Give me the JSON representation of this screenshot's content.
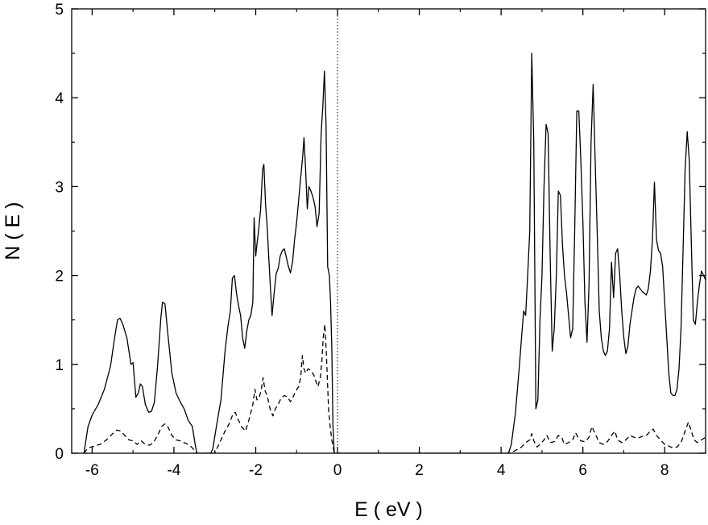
{
  "chart_data": {
    "type": "line",
    "xlabel": "E ( eV )",
    "ylabel": "N ( E )",
    "xlim": [
      -6.5,
      9.0
    ],
    "ylim": [
      0,
      5
    ],
    "xticks": [
      -6,
      -4,
      -2,
      0,
      2,
      4,
      6,
      8
    ],
    "yticks": [
      0,
      1,
      2,
      3,
      4,
      5
    ],
    "grid": false,
    "fermi_level": 0,
    "series": [
      {
        "style": "solid",
        "points": [
          [
            -6.2,
            0
          ],
          [
            -6.1,
            0.3
          ],
          [
            -6.0,
            0.43
          ],
          [
            -5.85,
            0.55
          ],
          [
            -5.7,
            0.72
          ],
          [
            -5.55,
            0.98
          ],
          [
            -5.45,
            1.3
          ],
          [
            -5.38,
            1.5
          ],
          [
            -5.32,
            1.52
          ],
          [
            -5.25,
            1.45
          ],
          [
            -5.15,
            1.3
          ],
          [
            -5.05,
            1.0
          ],
          [
            -5.0,
            1.02
          ],
          [
            -4.97,
            0.85
          ],
          [
            -4.93,
            0.63
          ],
          [
            -4.87,
            0.68
          ],
          [
            -4.82,
            0.78
          ],
          [
            -4.77,
            0.75
          ],
          [
            -4.7,
            0.55
          ],
          [
            -4.62,
            0.46
          ],
          [
            -4.55,
            0.47
          ],
          [
            -4.48,
            0.57
          ],
          [
            -4.4,
            0.98
          ],
          [
            -4.32,
            1.52
          ],
          [
            -4.28,
            1.7
          ],
          [
            -4.22,
            1.68
          ],
          [
            -4.15,
            1.35
          ],
          [
            -4.05,
            0.9
          ],
          [
            -3.95,
            0.68
          ],
          [
            -3.85,
            0.58
          ],
          [
            -3.75,
            0.5
          ],
          [
            -3.65,
            0.37
          ],
          [
            -3.55,
            0.3
          ],
          [
            -3.48,
            0.1
          ],
          [
            -3.44,
            0
          ],
          [
            -3.1,
            0
          ],
          [
            -3.05,
            0.05
          ],
          [
            -2.95,
            0.33
          ],
          [
            -2.85,
            0.6
          ],
          [
            -2.75,
            1.15
          ],
          [
            -2.68,
            1.43
          ],
          [
            -2.62,
            1.6
          ],
          [
            -2.57,
            1.97
          ],
          [
            -2.52,
            2.0
          ],
          [
            -2.47,
            1.8
          ],
          [
            -2.42,
            1.66
          ],
          [
            -2.37,
            1.55
          ],
          [
            -2.32,
            1.3
          ],
          [
            -2.27,
            1.18
          ],
          [
            -2.22,
            1.37
          ],
          [
            -2.17,
            1.5
          ],
          [
            -2.12,
            1.55
          ],
          [
            -2.07,
            1.7
          ],
          [
            -2.04,
            2.65
          ],
          [
            -2.0,
            2.22
          ],
          [
            -1.97,
            2.35
          ],
          [
            -1.93,
            2.5
          ],
          [
            -1.88,
            2.75
          ],
          [
            -1.83,
            3.2
          ],
          [
            -1.8,
            3.25
          ],
          [
            -1.76,
            2.8
          ],
          [
            -1.72,
            2.55
          ],
          [
            -1.68,
            2.2
          ],
          [
            -1.64,
            1.85
          ],
          [
            -1.6,
            1.55
          ],
          [
            -1.55,
            1.8
          ],
          [
            -1.5,
            2.02
          ],
          [
            -1.45,
            2.08
          ],
          [
            -1.4,
            2.22
          ],
          [
            -1.35,
            2.28
          ],
          [
            -1.3,
            2.3
          ],
          [
            -1.25,
            2.2
          ],
          [
            -1.2,
            2.1
          ],
          [
            -1.15,
            2.03
          ],
          [
            -1.1,
            2.15
          ],
          [
            -1.05,
            2.4
          ],
          [
            -1.0,
            2.6
          ],
          [
            -0.95,
            2.85
          ],
          [
            -0.9,
            3.1
          ],
          [
            -0.85,
            3.35
          ],
          [
            -0.82,
            3.55
          ],
          [
            -0.78,
            3.2
          ],
          [
            -0.74,
            2.75
          ],
          [
            -0.7,
            3.0
          ],
          [
            -0.65,
            2.95
          ],
          [
            -0.6,
            2.88
          ],
          [
            -0.55,
            2.78
          ],
          [
            -0.5,
            2.55
          ],
          [
            -0.45,
            2.7
          ],
          [
            -0.4,
            3.6
          ],
          [
            -0.36,
            3.9
          ],
          [
            -0.32,
            4.3
          ],
          [
            -0.28,
            3.7
          ],
          [
            -0.24,
            2.1
          ],
          [
            -0.2,
            2.0
          ],
          [
            -0.17,
            1.7
          ],
          [
            -0.14,
            1.2
          ],
          [
            -0.11,
            0.3
          ],
          [
            -0.08,
            0
          ],
          [
            4.18,
            0
          ],
          [
            4.25,
            0.1
          ],
          [
            4.35,
            0.45
          ],
          [
            4.45,
            1.0
          ],
          [
            4.5,
            1.3
          ],
          [
            4.55,
            1.6
          ],
          [
            4.6,
            1.55
          ],
          [
            4.65,
            2.0
          ],
          [
            4.7,
            2.5
          ],
          [
            4.75,
            4.5
          ],
          [
            4.8,
            3.5
          ],
          [
            4.85,
            0.5
          ],
          [
            4.9,
            0.6
          ],
          [
            4.95,
            1.5
          ],
          [
            5.0,
            2.0
          ],
          [
            5.05,
            3.0
          ],
          [
            5.1,
            3.7
          ],
          [
            5.15,
            3.6
          ],
          [
            5.2,
            2.2
          ],
          [
            5.25,
            1.15
          ],
          [
            5.3,
            1.4
          ],
          [
            5.35,
            2.0
          ],
          [
            5.4,
            2.95
          ],
          [
            5.45,
            2.9
          ],
          [
            5.5,
            2.35
          ],
          [
            5.55,
            2.0
          ],
          [
            5.6,
            1.8
          ],
          [
            5.65,
            1.55
          ],
          [
            5.7,
            1.3
          ],
          [
            5.75,
            1.4
          ],
          [
            5.8,
            2.5
          ],
          [
            5.85,
            3.85
          ],
          [
            5.9,
            3.85
          ],
          [
            5.95,
            3.3
          ],
          [
            6.0,
            2.6
          ],
          [
            6.05,
            1.7
          ],
          [
            6.1,
            1.25
          ],
          [
            6.15,
            1.9
          ],
          [
            6.2,
            3.5
          ],
          [
            6.25,
            4.15
          ],
          [
            6.3,
            3.3
          ],
          [
            6.35,
            2.5
          ],
          [
            6.4,
            1.6
          ],
          [
            6.45,
            1.3
          ],
          [
            6.5,
            1.15
          ],
          [
            6.55,
            1.1
          ],
          [
            6.6,
            1.15
          ],
          [
            6.65,
            1.4
          ],
          [
            6.7,
            2.15
          ],
          [
            6.75,
            1.75
          ],
          [
            6.8,
            2.25
          ],
          [
            6.85,
            2.3
          ],
          [
            6.9,
            2.0
          ],
          [
            6.95,
            1.6
          ],
          [
            7.0,
            1.3
          ],
          [
            7.05,
            1.12
          ],
          [
            7.1,
            1.2
          ],
          [
            7.15,
            1.45
          ],
          [
            7.2,
            1.6
          ],
          [
            7.25,
            1.75
          ],
          [
            7.3,
            1.85
          ],
          [
            7.35,
            1.88
          ],
          [
            7.4,
            1.85
          ],
          [
            7.45,
            1.82
          ],
          [
            7.5,
            1.8
          ],
          [
            7.55,
            1.78
          ],
          [
            7.6,
            1.85
          ],
          [
            7.65,
            2.05
          ],
          [
            7.7,
            2.4
          ],
          [
            7.75,
            3.05
          ],
          [
            7.8,
            2.4
          ],
          [
            7.85,
            2.28
          ],
          [
            7.9,
            2.25
          ],
          [
            7.95,
            2.1
          ],
          [
            8.0,
            1.7
          ],
          [
            8.05,
            1.3
          ],
          [
            8.1,
            0.9
          ],
          [
            8.15,
            0.68
          ],
          [
            8.2,
            0.65
          ],
          [
            8.25,
            0.65
          ],
          [
            8.3,
            0.72
          ],
          [
            8.35,
            0.95
          ],
          [
            8.4,
            1.4
          ],
          [
            8.45,
            2.3
          ],
          [
            8.5,
            3.2
          ],
          [
            8.55,
            3.62
          ],
          [
            8.6,
            3.3
          ],
          [
            8.65,
            2.4
          ],
          [
            8.7,
            1.5
          ],
          [
            8.75,
            1.45
          ],
          [
            8.8,
            1.7
          ],
          [
            8.85,
            1.9
          ],
          [
            8.9,
            2.05
          ],
          [
            8.95,
            2.0
          ],
          [
            9.0,
            1.95
          ]
        ]
      },
      {
        "style": "dashed",
        "points": [
          [
            -6.2,
            0
          ],
          [
            -6.1,
            0.06
          ],
          [
            -5.95,
            0.08
          ],
          [
            -5.8,
            0.1
          ],
          [
            -5.65,
            0.15
          ],
          [
            -5.5,
            0.22
          ],
          [
            -5.4,
            0.26
          ],
          [
            -5.3,
            0.25
          ],
          [
            -5.2,
            0.2
          ],
          [
            -5.1,
            0.15
          ],
          [
            -5.0,
            0.14
          ],
          [
            -4.9,
            0.1
          ],
          [
            -4.8,
            0.14
          ],
          [
            -4.7,
            0.1
          ],
          [
            -4.6,
            0.09
          ],
          [
            -4.5,
            0.12
          ],
          [
            -4.4,
            0.2
          ],
          [
            -4.3,
            0.3
          ],
          [
            -4.22,
            0.33
          ],
          [
            -4.15,
            0.3
          ],
          [
            -4.05,
            0.2
          ],
          [
            -3.95,
            0.15
          ],
          [
            -3.85,
            0.14
          ],
          [
            -3.75,
            0.12
          ],
          [
            -3.65,
            0.1
          ],
          [
            -3.55,
            0.06
          ],
          [
            -3.48,
            0.02
          ],
          [
            -3.44,
            0
          ],
          [
            -3.0,
            0
          ],
          [
            -2.95,
            0.05
          ],
          [
            -2.85,
            0.15
          ],
          [
            -2.75,
            0.25
          ],
          [
            -2.65,
            0.33
          ],
          [
            -2.55,
            0.45
          ],
          [
            -2.5,
            0.46
          ],
          [
            -2.45,
            0.4
          ],
          [
            -2.35,
            0.3
          ],
          [
            -2.25,
            0.25
          ],
          [
            -2.15,
            0.4
          ],
          [
            -2.07,
            0.55
          ],
          [
            -2.02,
            0.72
          ],
          [
            -1.97,
            0.6
          ],
          [
            -1.92,
            0.62
          ],
          [
            -1.87,
            0.7
          ],
          [
            -1.82,
            0.85
          ],
          [
            -1.77,
            0.7
          ],
          [
            -1.72,
            0.65
          ],
          [
            -1.65,
            0.5
          ],
          [
            -1.58,
            0.42
          ],
          [
            -1.52,
            0.5
          ],
          [
            -1.45,
            0.55
          ],
          [
            -1.38,
            0.62
          ],
          [
            -1.3,
            0.65
          ],
          [
            -1.22,
            0.63
          ],
          [
            -1.15,
            0.58
          ],
          [
            -1.1,
            0.62
          ],
          [
            -1.02,
            0.7
          ],
          [
            -0.95,
            0.75
          ],
          [
            -0.9,
            0.85
          ],
          [
            -0.86,
            1.1
          ],
          [
            -0.82,
            0.95
          ],
          [
            -0.78,
            0.9
          ],
          [
            -0.72,
            0.95
          ],
          [
            -0.65,
            0.93
          ],
          [
            -0.58,
            0.88
          ],
          [
            -0.52,
            0.8
          ],
          [
            -0.48,
            0.75
          ],
          [
            -0.42,
            0.85
          ],
          [
            -0.38,
            1.05
          ],
          [
            -0.35,
            1.3
          ],
          [
            -0.31,
            1.45
          ],
          [
            -0.27,
            1.1
          ],
          [
            -0.22,
            0.5
          ],
          [
            -0.18,
            0.3
          ],
          [
            -0.14,
            0.15
          ],
          [
            -0.1,
            0.05
          ],
          [
            -0.08,
            0
          ],
          [
            4.2,
            0
          ],
          [
            4.35,
            0.03
          ],
          [
            4.5,
            0.07
          ],
          [
            4.6,
            0.12
          ],
          [
            4.7,
            0.15
          ],
          [
            4.75,
            0.22
          ],
          [
            4.8,
            0.14
          ],
          [
            4.88,
            0.07
          ],
          [
            4.95,
            0.1
          ],
          [
            5.05,
            0.15
          ],
          [
            5.12,
            0.2
          ],
          [
            5.2,
            0.12
          ],
          [
            5.3,
            0.13
          ],
          [
            5.4,
            0.2
          ],
          [
            5.48,
            0.18
          ],
          [
            5.55,
            0.1
          ],
          [
            5.65,
            0.12
          ],
          [
            5.75,
            0.15
          ],
          [
            5.82,
            0.23
          ],
          [
            5.88,
            0.18
          ],
          [
            5.95,
            0.14
          ],
          [
            6.05,
            0.13
          ],
          [
            6.15,
            0.18
          ],
          [
            6.22,
            0.3
          ],
          [
            6.3,
            0.22
          ],
          [
            6.4,
            0.12
          ],
          [
            6.5,
            0.1
          ],
          [
            6.6,
            0.13
          ],
          [
            6.7,
            0.2
          ],
          [
            6.78,
            0.25
          ],
          [
            6.85,
            0.15
          ],
          [
            6.95,
            0.12
          ],
          [
            7.05,
            0.15
          ],
          [
            7.15,
            0.2
          ],
          [
            7.25,
            0.18
          ],
          [
            7.35,
            0.17
          ],
          [
            7.45,
            0.19
          ],
          [
            7.55,
            0.2
          ],
          [
            7.65,
            0.25
          ],
          [
            7.72,
            0.27
          ],
          [
            7.8,
            0.2
          ],
          [
            7.9,
            0.15
          ],
          [
            8.0,
            0.1
          ],
          [
            8.1,
            0.08
          ],
          [
            8.2,
            0.06
          ],
          [
            8.3,
            0.07
          ],
          [
            8.4,
            0.12
          ],
          [
            8.5,
            0.25
          ],
          [
            8.58,
            0.35
          ],
          [
            8.65,
            0.25
          ],
          [
            8.72,
            0.15
          ],
          [
            8.8,
            0.12
          ],
          [
            8.9,
            0.15
          ],
          [
            9.0,
            0.18
          ]
        ]
      }
    ]
  }
}
